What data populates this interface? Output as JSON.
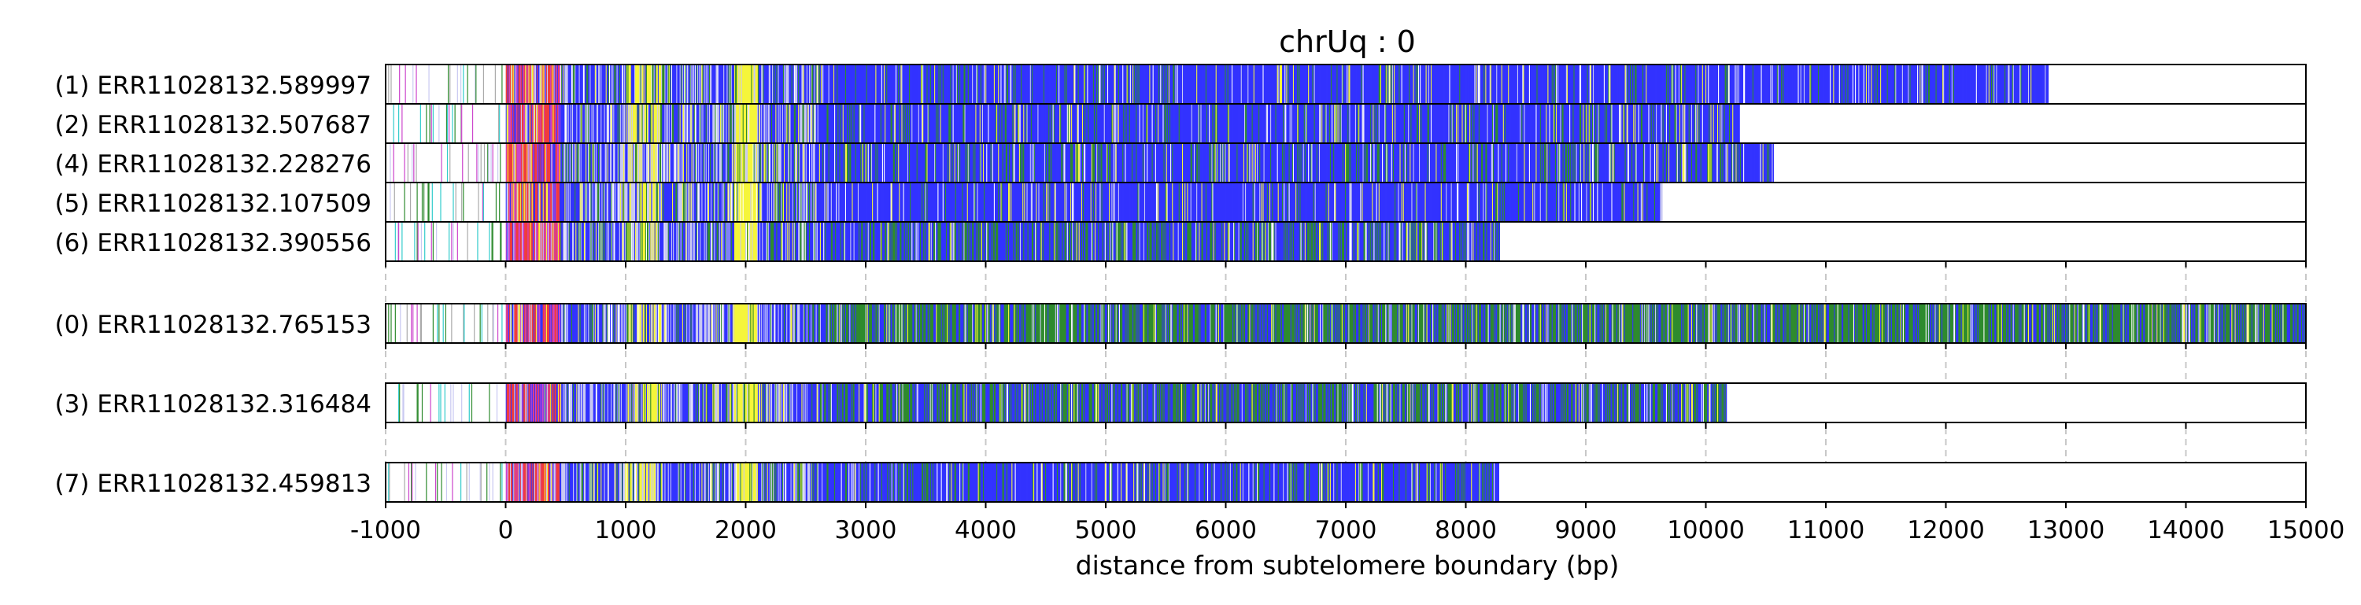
{
  "chart_data": {
    "type": "heatmap",
    "title": "chrUq : 0",
    "xlabel": "distance from subtelomere boundary (bp)",
    "ylabel": "",
    "xlim": [
      -1000,
      15000
    ],
    "x_ticks": [
      -1000,
      0,
      1000,
      2000,
      3000,
      4000,
      5000,
      6000,
      7000,
      8000,
      9000,
      10000,
      11000,
      12000,
      13000,
      14000,
      15000
    ],
    "x_tick_labels": [
      "-1000",
      "0",
      "1000",
      "2000",
      "3000",
      "4000",
      "5000",
      "6000",
      "7000",
      "8000",
      "9000",
      "10000",
      "11000",
      "12000",
      "13000",
      "14000",
      "15000"
    ],
    "grid": "vertical dashed at x ticks",
    "colors": {
      "blue": "#3333ff",
      "green": "#2e8b2e",
      "yellow": "#f5f53a",
      "red": "#f03c3c",
      "magenta": "#cc44cc",
      "light": "#c9c9f2",
      "cyan": "#33cccc"
    },
    "groups": [
      {
        "reads": [
          {
            "label": "(1) ERR11028132.589997",
            "end": 12870,
            "greenFrac": 0.08
          },
          {
            "label": "(2) ERR11028132.507687",
            "end": 10290,
            "greenFrac": 0.12
          },
          {
            "label": "(4) ERR11028132.228276",
            "end": 10570,
            "greenFrac": 0.15
          },
          {
            "label": "(5) ERR11028132.107509",
            "end": 9640,
            "greenFrac": 0.05
          },
          {
            "label": "(6) ERR11028132.390556",
            "end": 8290,
            "greenFrac": 0.3
          }
        ]
      },
      {
        "reads": [
          {
            "label": "(0) ERR11028132.765153",
            "end": 15000,
            "greenFrac": 0.55
          }
        ]
      },
      {
        "reads": [
          {
            "label": "(3) ERR11028132.316484",
            "end": 10180,
            "greenFrac": 0.4
          }
        ]
      },
      {
        "reads": [
          {
            "label": "(7) ERR11028132.459813",
            "end": 8290,
            "greenFrac": 0.15
          }
        ]
      }
    ]
  }
}
